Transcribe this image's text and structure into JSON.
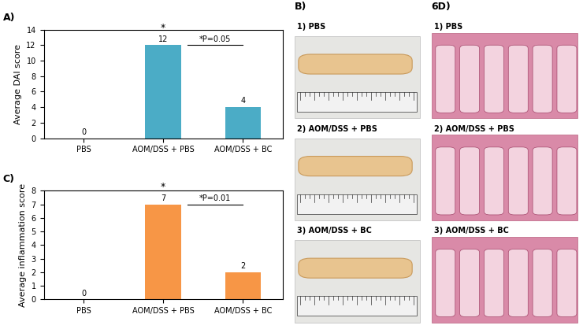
{
  "chart_data": [
    {
      "type": "bar",
      "title": "A)",
      "categories": [
        "PBS",
        "AOM/DSS + PBS",
        "AOM/DSS + BC"
      ],
      "values": [
        0,
        12,
        4
      ],
      "color": "#4bacc6",
      "y_label": "Average DAI score",
      "ylim": [
        0,
        14
      ],
      "yticks": [
        0,
        2,
        4,
        6,
        8,
        10,
        12,
        14
      ],
      "grid": false,
      "data_labels": true,
      "annotations": [
        {
          "text": "*",
          "category": "AOM/DSS + PBS"
        },
        {
          "text": "*P=0.05",
          "between": [
            "AOM/DSS + PBS",
            "AOM/DSS + BC"
          ]
        }
      ]
    },
    {
      "type": "bar",
      "title": "C)",
      "categories": [
        "PBS",
        "AOM/DSS + PBS",
        "AOM/DSS + BC"
      ],
      "values": [
        0,
        7,
        2
      ],
      "color": "#f79646",
      "y_label": "Average inflammation score",
      "ylim": [
        0,
        8
      ],
      "yticks": [
        0,
        1,
        2,
        3,
        4,
        5,
        6,
        7,
        8
      ],
      "grid": false,
      "data_labels": true,
      "annotations": [
        {
          "text": "*",
          "category": "AOM/DSS + PBS"
        },
        {
          "text": "*P=0.01",
          "between": [
            "AOM/DSS + PBS",
            "AOM/DSS + BC"
          ]
        }
      ]
    }
  ],
  "images": [
    {
      "label": "B)",
      "items": [
        "1) PBS",
        "2) AOM/DSS + PBS",
        "3) AOM/DSS + BC"
      ]
    },
    {
      "label": "6D)",
      "items": [
        "1) PBS",
        "2) AOM/DSS + PBS",
        "3) AOM/DSS + BC"
      ]
    }
  ]
}
